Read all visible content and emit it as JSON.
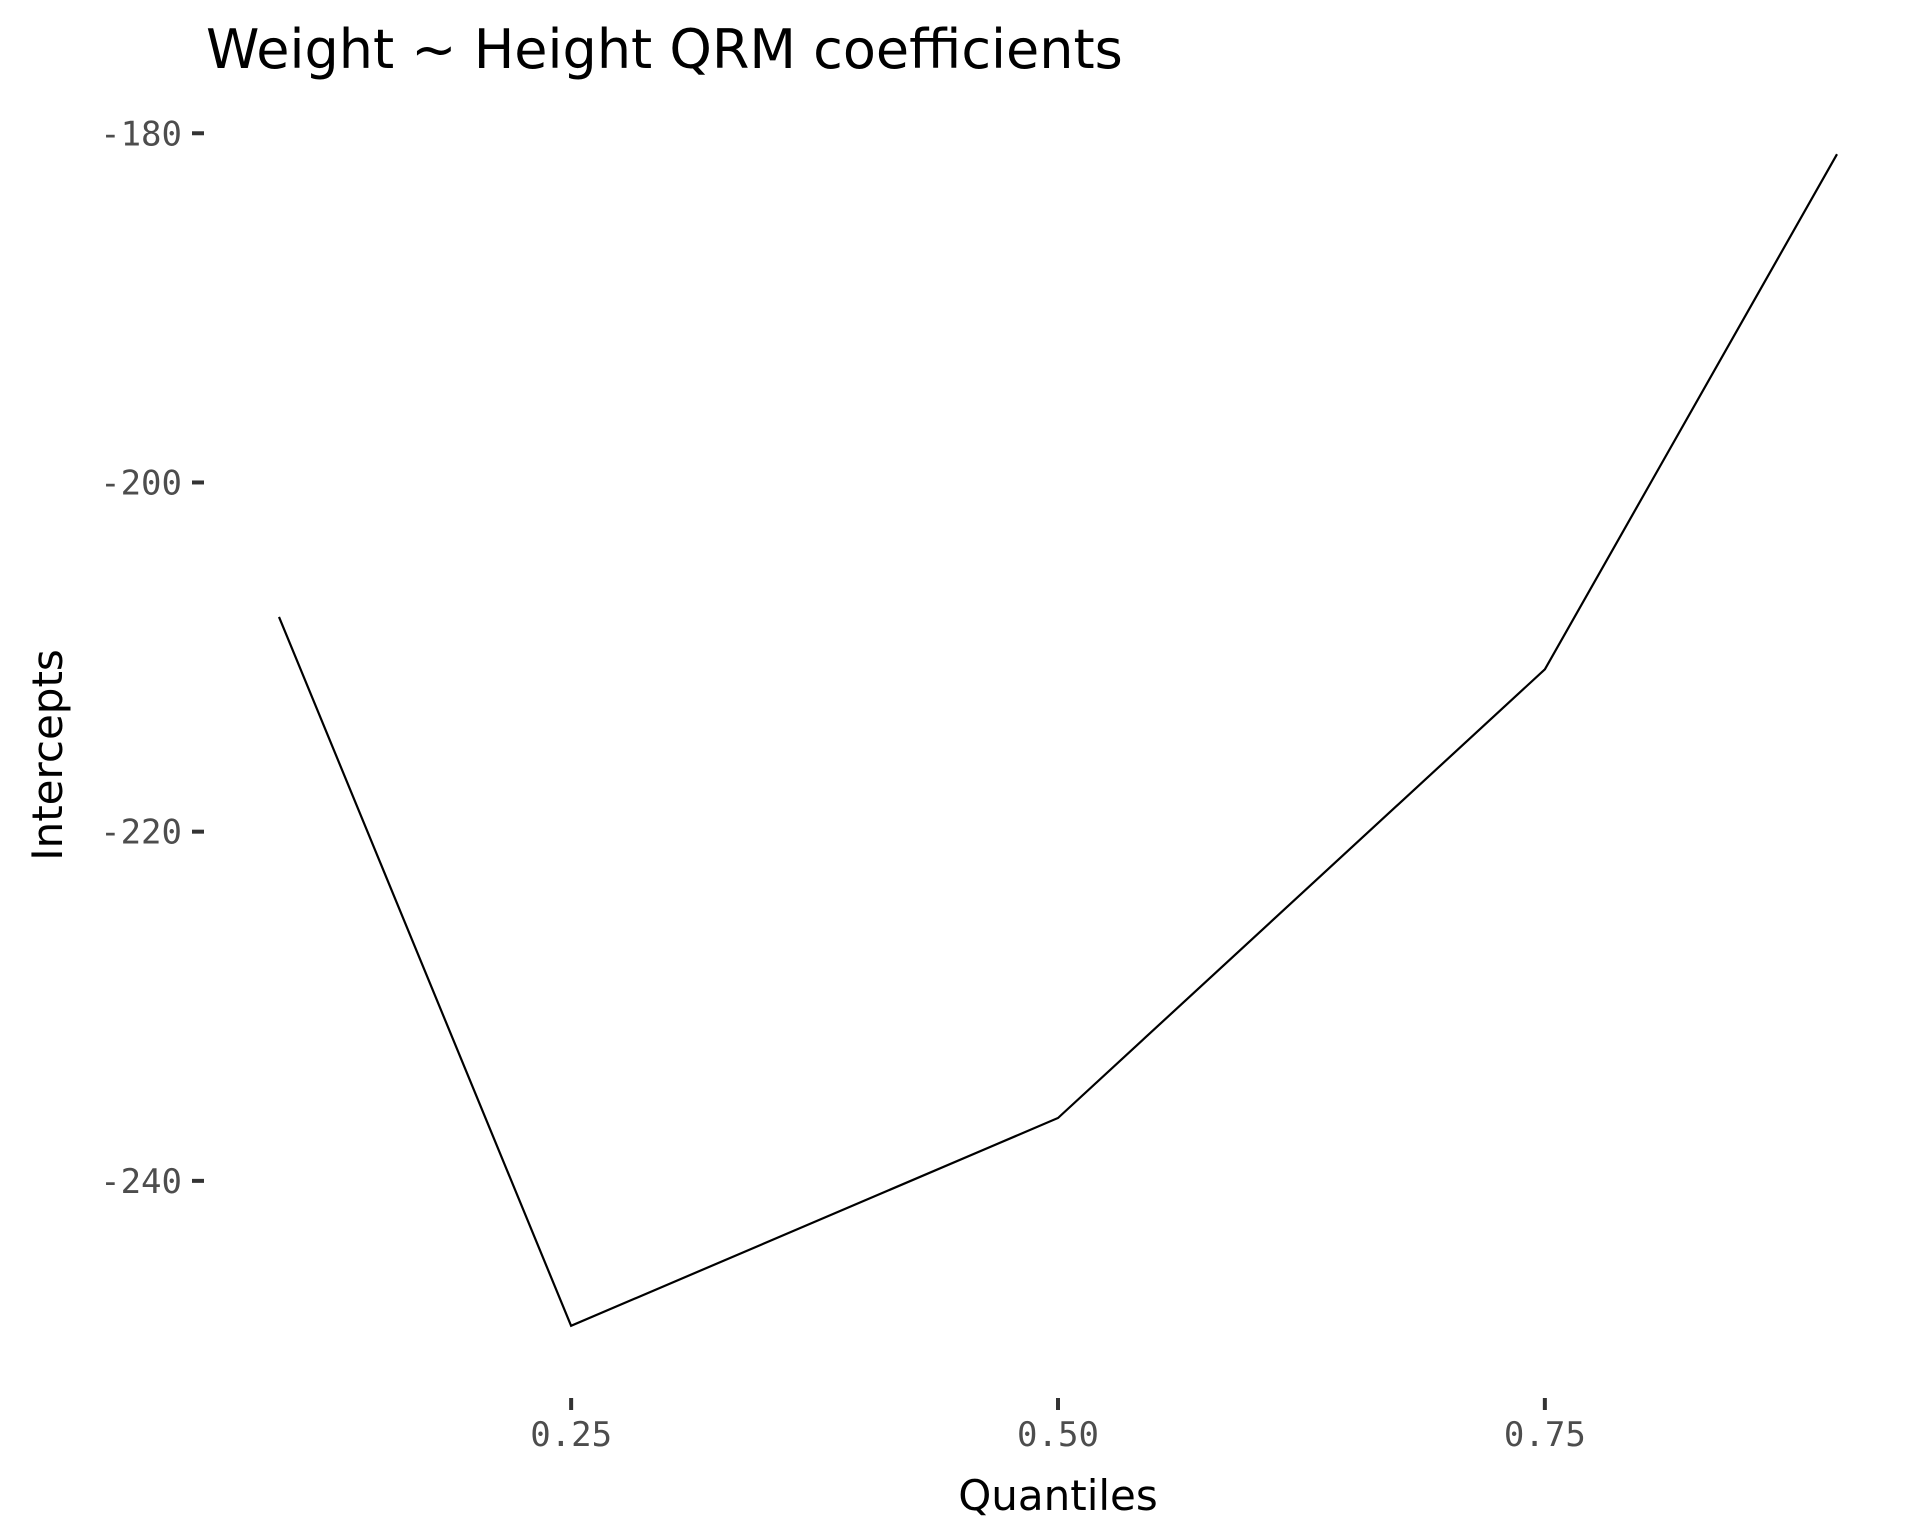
{
  "chart_data": {
    "type": "line",
    "title": "Weight ~ Height QRM coefficients",
    "xlabel": "Quantiles",
    "ylabel": "Intercepts",
    "x": [
      0.1,
      0.25,
      0.5,
      0.75,
      0.9
    ],
    "series": [
      {
        "values": [
          -207.7,
          -248.3,
          -236.4,
          -210.7,
          -181.2
        ]
      }
    ],
    "xticks": [
      0.25,
      0.5,
      0.75
    ],
    "xtick_labels": [
      "0.25",
      "0.50",
      "0.75"
    ],
    "yticks": [
      -180,
      -200,
      -220,
      -240
    ],
    "ytick_labels": [
      "-180",
      "-200",
      "-220",
      "-240"
    ],
    "xlim": [
      0.0625,
      0.9375
    ],
    "ylim": [
      -250.26,
      -179.24
    ],
    "grid": false,
    "line_color": "#000000"
  }
}
